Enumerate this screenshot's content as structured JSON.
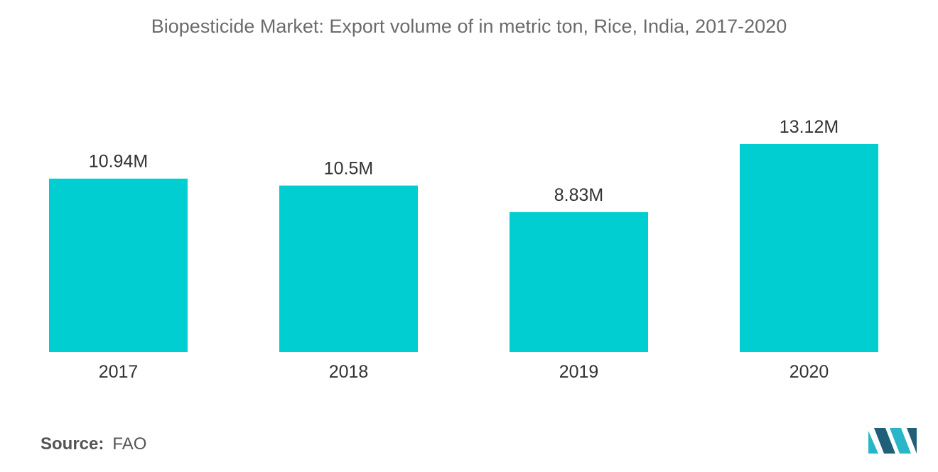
{
  "title": "Biopesticide Market: Export volume of in metric ton, Rice, India, 2017-2020",
  "source": {
    "label": "Source:",
    "value": "FAO"
  },
  "colors": {
    "bar": "#00CED1",
    "text": "#333333",
    "title": "#6b6b6b",
    "logo_dark": "#1f5f7a",
    "logo_light": "#29b6c8"
  },
  "logo_icon": "mordor-intelligence-logo",
  "chart_data": {
    "type": "bar",
    "title": "Biopesticide Market: Export volume of in metric ton, Rice, India, 2017-2020",
    "categories": [
      "2017",
      "2018",
      "2019",
      "2020"
    ],
    "values": [
      10.94,
      10.5,
      8.83,
      13.12
    ],
    "value_labels": [
      "10.94M",
      "10.5M",
      "8.83M",
      "13.12M"
    ],
    "xlabel": "",
    "ylabel": "",
    "ylim": [
      0,
      13.12
    ],
    "grid": false,
    "legend": "none"
  }
}
